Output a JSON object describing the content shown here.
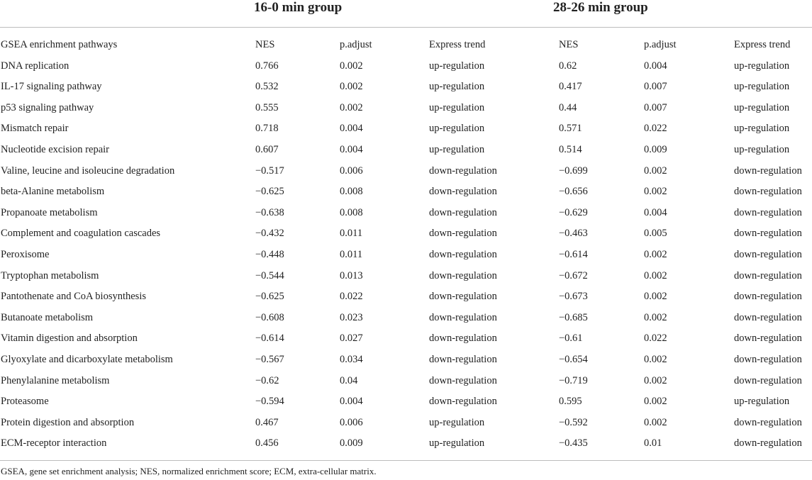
{
  "groups": [
    "16-0 min group",
    "28-26 min group"
  ],
  "columns": [
    "GSEA enrichment pathways",
    "NES",
    "p.adjust",
    "Express trend",
    "NES",
    "p.adjust",
    "Express trend"
  ],
  "rows": [
    [
      "DNA replication",
      "0.766",
      "0.002",
      "up-regulation",
      "0.62",
      "0.004",
      "up-regulation"
    ],
    [
      "IL-17 signaling pathway",
      "0.532",
      "0.002",
      "up-regulation",
      "0.417",
      "0.007",
      "up-regulation"
    ],
    [
      "p53 signaling pathway",
      "0.555",
      "0.002",
      "up-regulation",
      "0.44",
      "0.007",
      "up-regulation"
    ],
    [
      "Mismatch repair",
      "0.718",
      "0.004",
      "up-regulation",
      "0.571",
      "0.022",
      "up-regulation"
    ],
    [
      "Nucleotide excision repair",
      "0.607",
      "0.004",
      "up-regulation",
      "0.514",
      "0.009",
      "up-regulation"
    ],
    [
      "Valine, leucine and isoleucine degradation",
      "−0.517",
      "0.006",
      "down-regulation",
      "−0.699",
      "0.002",
      "down-regulation"
    ],
    [
      "beta-Alanine metabolism",
      "−0.625",
      "0.008",
      "down-regulation",
      "−0.656",
      "0.002",
      "down-regulation"
    ],
    [
      "Propanoate metabolism",
      "−0.638",
      "0.008",
      "down-regulation",
      "−0.629",
      "0.004",
      "down-regulation"
    ],
    [
      "Complement and coagulation cascades",
      "−0.432",
      "0.011",
      "down-regulation",
      "−0.463",
      "0.005",
      "down-regulation"
    ],
    [
      "Peroxisome",
      "−0.448",
      "0.011",
      "down-regulation",
      "−0.614",
      "0.002",
      "down-regulation"
    ],
    [
      "Tryptophan metabolism",
      "−0.544",
      "0.013",
      "down-regulation",
      "−0.672",
      "0.002",
      "down-regulation"
    ],
    [
      "Pantothenate and CoA biosynthesis",
      "−0.625",
      "0.022",
      "down-regulation",
      "−0.673",
      "0.002",
      "down-regulation"
    ],
    [
      "Butanoate metabolism",
      "−0.608",
      "0.023",
      "down-regulation",
      "−0.685",
      "0.002",
      "down-regulation"
    ],
    [
      "Vitamin digestion and absorption",
      "−0.614",
      "0.027",
      "down-regulation",
      "−0.61",
      "0.022",
      "down-regulation"
    ],
    [
      "Glyoxylate and dicarboxylate metabolism",
      "−0.567",
      "0.034",
      "down-regulation",
      "−0.654",
      "0.002",
      "down-regulation"
    ],
    [
      "Phenylalanine metabolism",
      "−0.62",
      "0.04",
      "down-regulation",
      "−0.719",
      "0.002",
      "down-regulation"
    ],
    [
      "Proteasome",
      "−0.594",
      "0.004",
      "down-regulation",
      "0.595",
      "0.002",
      "up-regulation"
    ],
    [
      "Protein digestion and absorption",
      "0.467",
      "0.006",
      "up-regulation",
      "−0.592",
      "0.002",
      "down-regulation"
    ],
    [
      "ECM-receptor interaction",
      "0.456",
      "0.009",
      "up-regulation",
      "−0.435",
      "0.01",
      "down-regulation"
    ]
  ],
  "footnote": "GSEA, gene set enrichment analysis; NES, normalized enrichment score; ECM, extra-cellular matrix."
}
